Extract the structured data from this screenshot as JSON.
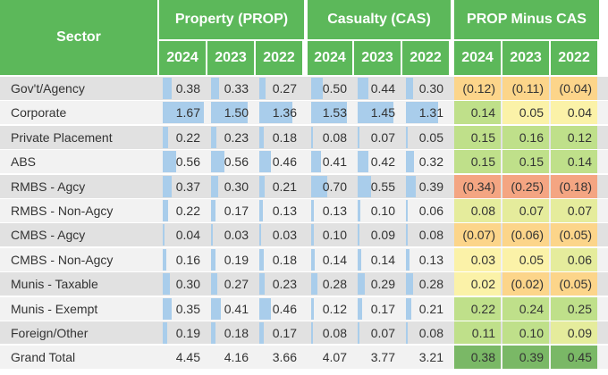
{
  "chart_data": {
    "type": "table",
    "sector_header": "Sector",
    "groups": [
      {
        "name": "Property (PROP)",
        "years": [
          "2024",
          "2023",
          "2022"
        ],
        "kind": "bar"
      },
      {
        "name": "Casualty (CAS)",
        "years": [
          "2024",
          "2023",
          "2022"
        ],
        "kind": "bar"
      },
      {
        "name": "PROP Minus CAS",
        "years": [
          "2024",
          "2023",
          "2022"
        ],
        "kind": "heat"
      }
    ],
    "rows": [
      {
        "sector": "Gov't/Agency",
        "prop": [
          "0.38",
          "0.33",
          "0.27"
        ],
        "cas": [
          "0.50",
          "0.44",
          "0.30"
        ],
        "diff": [
          "(0.12)",
          "(0.11)",
          "(0.04)"
        ],
        "diff_values": [
          -0.12,
          -0.11,
          -0.04
        ]
      },
      {
        "sector": "Corporate",
        "prop": [
          "1.67",
          "1.50",
          "1.36"
        ],
        "cas": [
          "1.53",
          "1.45",
          "1.31"
        ],
        "diff": [
          "0.14",
          "0.05",
          "0.04"
        ],
        "diff_values": [
          0.14,
          0.05,
          0.04
        ]
      },
      {
        "sector": "Private Placement",
        "prop": [
          "0.22",
          "0.23",
          "0.18"
        ],
        "cas": [
          "0.08",
          "0.07",
          "0.05"
        ],
        "diff": [
          "0.15",
          "0.16",
          "0.12"
        ],
        "diff_values": [
          0.15,
          0.16,
          0.12
        ]
      },
      {
        "sector": "ABS",
        "prop": [
          "0.56",
          "0.56",
          "0.46"
        ],
        "cas": [
          "0.41",
          "0.42",
          "0.32"
        ],
        "diff": [
          "0.15",
          "0.15",
          "0.14"
        ],
        "diff_values": [
          0.15,
          0.15,
          0.14
        ]
      },
      {
        "sector": "RMBS - Agcy",
        "prop": [
          "0.37",
          "0.30",
          "0.21"
        ],
        "cas": [
          "0.70",
          "0.55",
          "0.39"
        ],
        "diff": [
          "(0.34)",
          "(0.25)",
          "(0.18)"
        ],
        "diff_values": [
          -0.34,
          -0.25,
          -0.18
        ]
      },
      {
        "sector": "RMBS - Non-Agcy",
        "prop": [
          "0.22",
          "0.17",
          "0.13"
        ],
        "cas": [
          "0.13",
          "0.10",
          "0.06"
        ],
        "diff": [
          "0.08",
          "0.07",
          "0.07"
        ],
        "diff_values": [
          0.08,
          0.07,
          0.07
        ]
      },
      {
        "sector": "CMBS - Agcy",
        "prop": [
          "0.04",
          "0.03",
          "0.03"
        ],
        "cas": [
          "0.10",
          "0.09",
          "0.08"
        ],
        "diff": [
          "(0.07)",
          "(0.06)",
          "(0.05)"
        ],
        "diff_values": [
          -0.07,
          -0.06,
          -0.05
        ]
      },
      {
        "sector": "CMBS - Non-Agcy",
        "prop": [
          "0.16",
          "0.19",
          "0.18"
        ],
        "cas": [
          "0.14",
          "0.14",
          "0.13"
        ],
        "diff": [
          "0.03",
          "0.05",
          "0.06"
        ],
        "diff_values": [
          0.03,
          0.05,
          0.06
        ]
      },
      {
        "sector": "Munis - Taxable",
        "prop": [
          "0.30",
          "0.27",
          "0.23"
        ],
        "cas": [
          "0.28",
          "0.29",
          "0.28"
        ],
        "diff": [
          "0.02",
          "(0.02)",
          "(0.05)"
        ],
        "diff_values": [
          0.02,
          -0.02,
          -0.05
        ]
      },
      {
        "sector": "Munis - Exempt",
        "prop": [
          "0.35",
          "0.41",
          "0.46"
        ],
        "cas": [
          "0.12",
          "0.17",
          "0.21"
        ],
        "diff": [
          "0.22",
          "0.24",
          "0.25"
        ],
        "diff_values": [
          0.22,
          0.24,
          0.25
        ]
      },
      {
        "sector": "Foreign/Other",
        "prop": [
          "0.19",
          "0.18",
          "0.17"
        ],
        "cas": [
          "0.08",
          "0.07",
          "0.08"
        ],
        "diff": [
          "0.11",
          "0.10",
          "0.09"
        ],
        "diff_values": [
          0.11,
          0.1,
          0.09
        ]
      }
    ],
    "total": {
      "sector": "Grand Total",
      "prop": [
        "4.45",
        "4.16",
        "3.66"
      ],
      "cas": [
        "4.07",
        "3.77",
        "3.21"
      ],
      "diff": [
        "0.38",
        "0.39",
        "0.45"
      ]
    },
    "bar_scale_max": 1.67,
    "colors": {
      "header": "#5cb85a",
      "bar": "#a9cdeb",
      "row_light": "#f2f2f2",
      "row_dark": "#e1e1e1",
      "heat_negative_strong": "#f4a582",
      "heat_negative": "#fcd58a",
      "heat_neutral": "#fbf2a8",
      "heat_positive": "#bfe08a",
      "total_diff": "#7ab866"
    }
  }
}
